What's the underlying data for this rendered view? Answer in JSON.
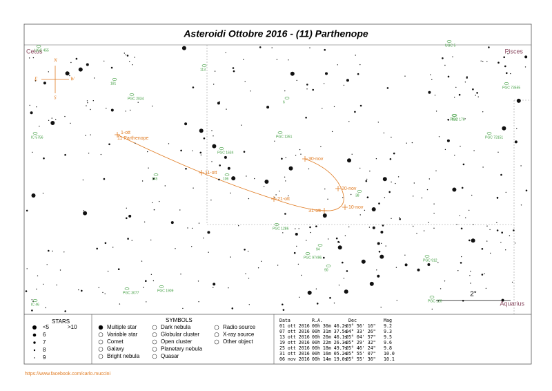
{
  "title": "Asteroidi  Ottobre 2016 - (11)  Parthenope",
  "constellations": [
    "Cetus",
    "Pisces",
    "Aquarius"
  ],
  "compass": {
    "n": "N",
    "s": "S",
    "e": "E",
    "w": "W"
  },
  "track": {
    "object": "11 Parthenope",
    "dates": [
      "1-ott",
      "11-ott",
      "21-ott",
      "31-ott",
      "10-nov",
      "20-nov",
      "30-nov"
    ]
  },
  "scale": "2°",
  "galaxies": [
    "UGC 455",
    "181",
    "PGC 2034",
    "113",
    "PGC 1261",
    "PGC 1634",
    "145",
    "106",
    "PGC 1286",
    "PGC 97496",
    "PGC 3077",
    "PGC 1909",
    "7832",
    "PGC 176",
    "PGC 73151",
    "PGC 73555",
    "PGC 912",
    "PGC 120",
    "IC 46",
    "UGC 5",
    "IC 5756",
    "38",
    "94",
    "90",
    "6"
  ],
  "legend": {
    "stars_title": "STARS",
    "magnitudes": [
      "<5",
      ">10",
      "6",
      "7",
      "8",
      "9"
    ],
    "symbols_title": "SYMBOLS",
    "symbols": [
      "Multiple star",
      "Variable star",
      "Comet",
      "Galaxy",
      "Bright nebula",
      "Dark nebula",
      "Globular cluster",
      "Open cluster",
      "Planetary nebula",
      "Quasar",
      "Radio source",
      "X-ray source",
      "Other object"
    ]
  },
  "ephemeris": {
    "header": [
      "Data",
      "R.A.",
      "Dec",
      "Mag"
    ],
    "rows": [
      [
        "01 ott 2016",
        "00h 36m 46.2s",
        "-03° 56' 16\"",
        "9.2"
      ],
      [
        "07 ott 2016",
        "00h 31m 37.5s",
        "-04° 33' 26\"",
        "9.3"
      ],
      [
        "13 ott 2016",
        "00h 26m 46.1s",
        "-05° 04' 57\"",
        "9.5"
      ],
      [
        "19 ott 2016",
        "00h 22m 26.3s",
        "-05° 29' 32\"",
        "9.6"
      ],
      [
        "25 ott 2016",
        "00h 18m 49.7s",
        "-05° 46' 24\"",
        "9.8"
      ],
      [
        "31 ott 2016",
        "00h 16m 05.2s",
        "-05° 55' 07\"",
        "10.0"
      ],
      [
        "06 nov 2016",
        "00h 14m 19.0s",
        "-05° 55' 36\"",
        "10.1"
      ]
    ]
  },
  "url": "https://www.facebook.com/carlo.muccini"
}
